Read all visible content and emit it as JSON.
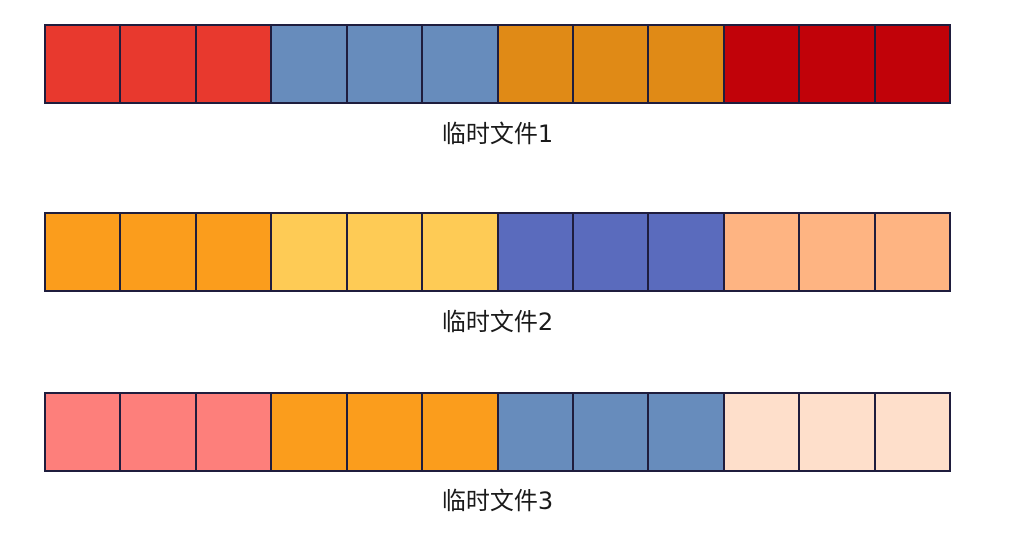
{
  "files": [
    {
      "label": "临时文件1",
      "cells": [
        "#e8392e",
        "#e8392e",
        "#e8392e",
        "#678cbc",
        "#678cbc",
        "#678cbc",
        "#e08a16",
        "#e08a16",
        "#e08a16",
        "#c10209",
        "#c10209",
        "#c10209"
      ]
    },
    {
      "label": "临时文件2",
      "cells": [
        "#fb9d1c",
        "#fb9d1c",
        "#fb9d1c",
        "#fecb55",
        "#fecb55",
        "#fecb55",
        "#5a6bbd",
        "#5a6bbd",
        "#5a6bbd",
        "#feb482",
        "#feb482",
        "#feb482"
      ]
    },
    {
      "label": "临时文件3",
      "cells": [
        "#fd7f7b",
        "#fd7f7b",
        "#fd7f7b",
        "#fb9d1c",
        "#fb9d1c",
        "#fb9d1c",
        "#678cbc",
        "#678cbc",
        "#678cbc",
        "#fedfcb",
        "#fedfcb",
        "#fedfcb"
      ]
    }
  ]
}
